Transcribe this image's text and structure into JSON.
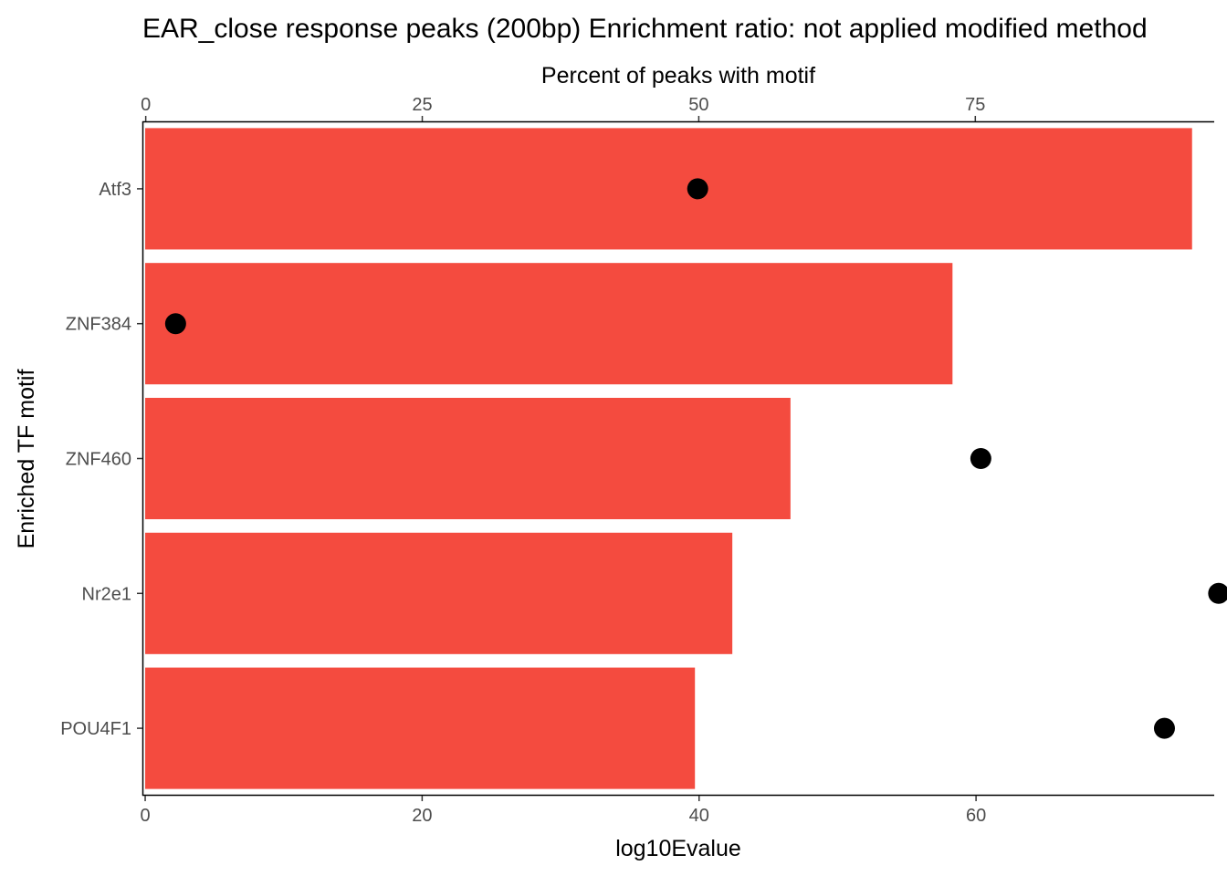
{
  "chart_data": {
    "type": "bar",
    "title": "EAR_close response peaks (200bp) Enrichment ratio: not applied  modified method",
    "ylabel": "Enriched TF motif",
    "xlabel": "log10Evalue",
    "x2label": "Percent of peaks with motif",
    "categories": [
      "Atf3",
      "ZNF384",
      "ZNF460",
      "Nr2e1",
      "POU4F1"
    ],
    "series": [
      {
        "kind": "bar",
        "values": [
          75.6,
          58.3,
          46.6,
          42.4,
          39.7
        ]
      },
      {
        "kind": "point",
        "values": [
          49.9,
          2.7,
          75.5,
          97.0,
          92.1
        ]
      }
    ],
    "xlim": [
      -0.2,
      77.2
    ],
    "x2lim": [
      -0.3,
      96.6
    ],
    "xticks": [
      0,
      20,
      40,
      60
    ],
    "x2ticks": [
      0,
      25,
      50,
      75
    ],
    "colors": {
      "bar": "#F44B3F",
      "point": "#000000",
      "axis": "#000000",
      "tick_text": "#4D4D4D"
    },
    "grid": false,
    "legend": "none"
  }
}
